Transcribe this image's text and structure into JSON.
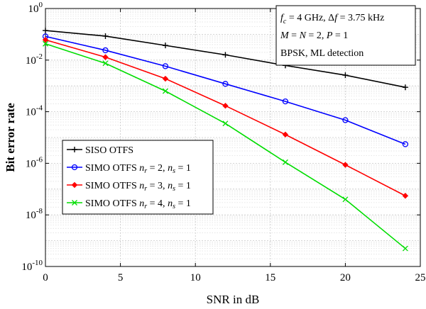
{
  "chart_data": {
    "type": "line",
    "xlabel": "SNR in dB",
    "ylabel": "Bit error rate",
    "xlim": [
      0,
      25
    ],
    "ylim": [
      1e-10,
      1
    ],
    "yscale": "log",
    "grid": true,
    "legend_position": "bottom-left",
    "x_ticks": [
      "0",
      "5",
      "10",
      "15",
      "20",
      "25"
    ],
    "y_ticks": [
      {
        "base": "10",
        "exp": "-10",
        "value": 1e-10
      },
      {
        "base": "10",
        "exp": "-8",
        "value": 1e-08
      },
      {
        "base": "10",
        "exp": "-6",
        "value": 1e-06
      },
      {
        "base": "10",
        "exp": "-4",
        "value": 0.0001
      },
      {
        "base": "10",
        "exp": "-2",
        "value": 0.01
      },
      {
        "base": "10",
        "exp": "0",
        "value": 1
      }
    ],
    "annotations": [
      {
        "id": "ann-params-1",
        "text": "f_c = 4 GHz, Δf = 3.75 kHz"
      },
      {
        "id": "ann-params-2",
        "text": "M = N = 2, P = 1"
      },
      {
        "id": "ann-params-3",
        "text": "BPSK, ML detection"
      }
    ],
    "series": [
      {
        "name": "SISO OTFS",
        "color": "#000000",
        "marker": "plus",
        "x": [
          0,
          4,
          8,
          12,
          16,
          20,
          24
        ],
        "y": [
          0.14,
          0.085,
          0.037,
          0.016,
          0.0062,
          0.0026,
          0.00088
        ]
      },
      {
        "name": "SIMO OTFS n_r = 2, n_s = 1",
        "color": "#0000ff",
        "marker": "circle",
        "x": [
          0,
          4,
          8,
          12,
          16,
          20,
          24
        ],
        "y": [
          0.083,
          0.024,
          0.0058,
          0.0012,
          0.00025,
          4.7e-05,
          5.5e-06
        ]
      },
      {
        "name": "SIMO OTFS n_r = 3, n_s = 1",
        "color": "#ff0000",
        "marker": "diamond",
        "x": [
          0,
          4,
          8,
          12,
          16,
          20,
          24
        ],
        "y": [
          0.061,
          0.013,
          0.0019,
          0.00017,
          1.3e-05,
          8.7e-07,
          5.5e-08
        ]
      },
      {
        "name": "SIMO OTFS n_r = 4, n_s = 1",
        "color": "#00dd00",
        "marker": "x",
        "x": [
          0,
          4,
          8,
          12,
          16,
          20,
          24
        ],
        "y": [
          0.043,
          0.0075,
          0.00063,
          3.5e-05,
          1.1e-06,
          4e-08,
          5e-10
        ]
      }
    ]
  }
}
